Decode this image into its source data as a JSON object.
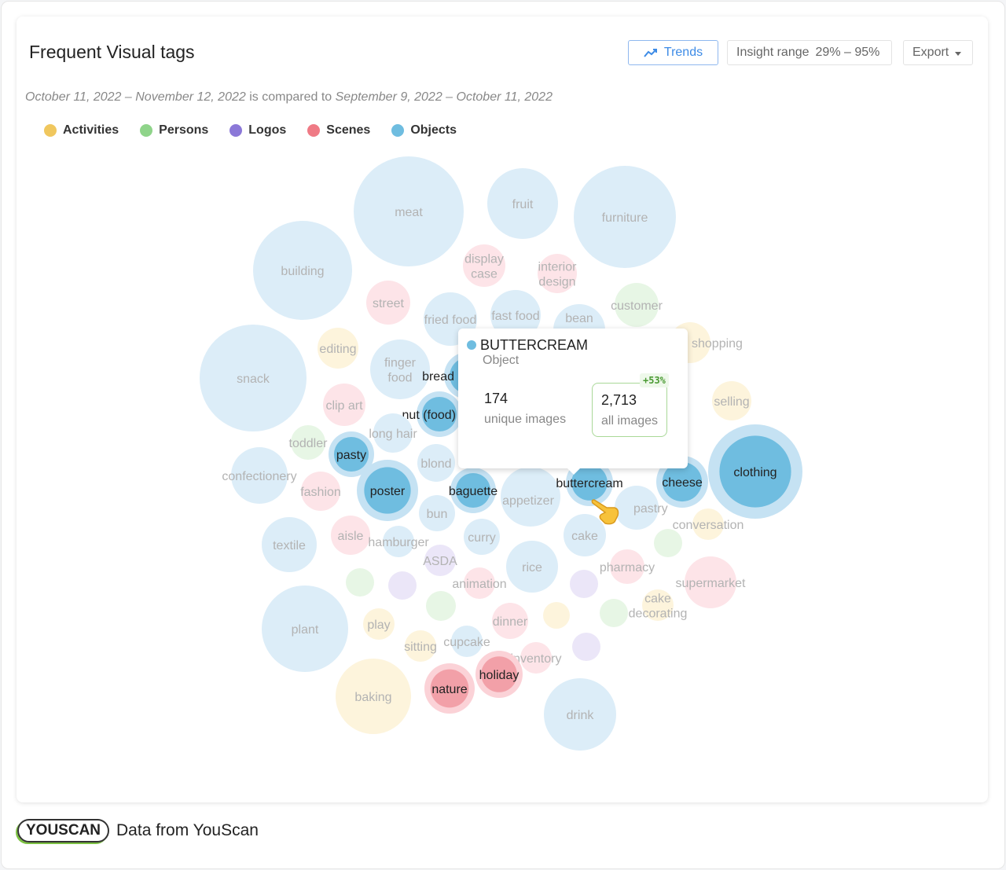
{
  "header": {
    "title": "Frequent Visual tags",
    "trends_label": "Trends",
    "insight_label": "Insight range",
    "insight_value": "29% – 95%",
    "export_label": "Export"
  },
  "subtitle": {
    "period": "October 11, 2022 – November 12, 2022",
    "connector": "is compared to",
    "compare_period": "September 9, 2022 – October 11, 2022"
  },
  "legend": [
    {
      "label": "Activities",
      "color": "#f0c75e"
    },
    {
      "label": "Persons",
      "color": "#8fd48a"
    },
    {
      "label": "Logos",
      "color": "#8b78d8"
    },
    {
      "label": "Scenes",
      "color": "#ef7a85"
    },
    {
      "label": "Objects",
      "color": "#6fbde0"
    }
  ],
  "tooltip": {
    "name": "BUTTERCREAM",
    "type": "Object",
    "unique_value": "174",
    "unique_label": "unique images",
    "all_value": "2,713",
    "all_label": "all images",
    "change": "+53%"
  },
  "chart_data": {
    "type": "bubble",
    "title": "Frequent Visual tags",
    "bubbles": [
      {
        "label": "meat",
        "cat": "obj"
      },
      {
        "label": "fruit",
        "cat": "obj"
      },
      {
        "label": "furniture",
        "cat": "obj"
      },
      {
        "label": "building",
        "cat": "obj"
      },
      {
        "label": "display case",
        "cat": "scene"
      },
      {
        "label": "interior design",
        "cat": "scene"
      },
      {
        "label": "street",
        "cat": "scene"
      },
      {
        "label": "fried food",
        "cat": "obj"
      },
      {
        "label": "fast food",
        "cat": "obj"
      },
      {
        "label": "bean",
        "cat": "obj"
      },
      {
        "label": "customer",
        "cat": "person"
      },
      {
        "label": "shopping",
        "cat": "act"
      },
      {
        "label": "editing",
        "cat": "act"
      },
      {
        "label": "snack",
        "cat": "obj"
      },
      {
        "label": "finger food",
        "cat": "obj"
      },
      {
        "label": "bread",
        "cat": "obj",
        "hi": true
      },
      {
        "label": "clip art",
        "cat": "scene"
      },
      {
        "label": "selling",
        "cat": "act"
      },
      {
        "label": "nut (food)",
        "cat": "obj",
        "hi": true
      },
      {
        "label": "long hair",
        "cat": "obj"
      },
      {
        "label": "toddler",
        "cat": "person"
      },
      {
        "label": "pasty",
        "cat": "obj",
        "hi": true
      },
      {
        "label": "confectionery",
        "cat": "obj"
      },
      {
        "label": "fashion",
        "cat": "scene"
      },
      {
        "label": "poster",
        "cat": "obj",
        "hi": true
      },
      {
        "label": "blond",
        "cat": "obj"
      },
      {
        "label": "baguette",
        "cat": "obj",
        "hi": true
      },
      {
        "label": "appetizer",
        "cat": "obj"
      },
      {
        "label": "buttercream",
        "cat": "obj",
        "hi": true
      },
      {
        "label": "pastry",
        "cat": "obj"
      },
      {
        "label": "cheese",
        "cat": "obj",
        "hi": true
      },
      {
        "label": "clothing",
        "cat": "obj",
        "hi": true
      },
      {
        "label": "bun",
        "cat": "obj"
      },
      {
        "label": "textile",
        "cat": "obj"
      },
      {
        "label": "aisle",
        "cat": "scene"
      },
      {
        "label": "hamburger",
        "cat": "obj"
      },
      {
        "label": "curry",
        "cat": "obj"
      },
      {
        "label": "cake",
        "cat": "obj"
      },
      {
        "label": "conversation",
        "cat": "act"
      },
      {
        "label": "ASDA",
        "cat": "logo"
      },
      {
        "label": "rice",
        "cat": "obj"
      },
      {
        "label": "pharmacy",
        "cat": "scene"
      },
      {
        "label": "supermarket",
        "cat": "scene"
      },
      {
        "label": "animation",
        "cat": "scene"
      },
      {
        "label": "plant",
        "cat": "obj"
      },
      {
        "label": "dinner",
        "cat": "scene"
      },
      {
        "label": "cake decorating",
        "cat": "act"
      },
      {
        "label": "play",
        "cat": "act"
      },
      {
        "label": "sitting",
        "cat": "act"
      },
      {
        "label": "cupcake",
        "cat": "obj"
      },
      {
        "label": "inventory",
        "cat": "scene"
      },
      {
        "label": "holiday",
        "cat": "scene",
        "hi": true
      },
      {
        "label": "nature",
        "cat": "scene",
        "hi": true
      },
      {
        "label": "baking",
        "cat": "act"
      },
      {
        "label": "drink",
        "cat": "obj"
      },
      {
        "label": "",
        "cat": "person"
      },
      {
        "label": "",
        "cat": "logo"
      },
      {
        "label": "",
        "cat": "logo"
      },
      {
        "label": "",
        "cat": "person"
      },
      {
        "label": "",
        "cat": "person"
      },
      {
        "label": "",
        "cat": "act"
      },
      {
        "label": "",
        "cat": "person"
      },
      {
        "label": "",
        "cat": "logo"
      },
      {
        "label": "",
        "cat": "obj"
      },
      {
        "label": "",
        "cat": "obj"
      }
    ]
  },
  "footer": {
    "logo": "YOUSCAN",
    "text": "Data from YouScan"
  }
}
